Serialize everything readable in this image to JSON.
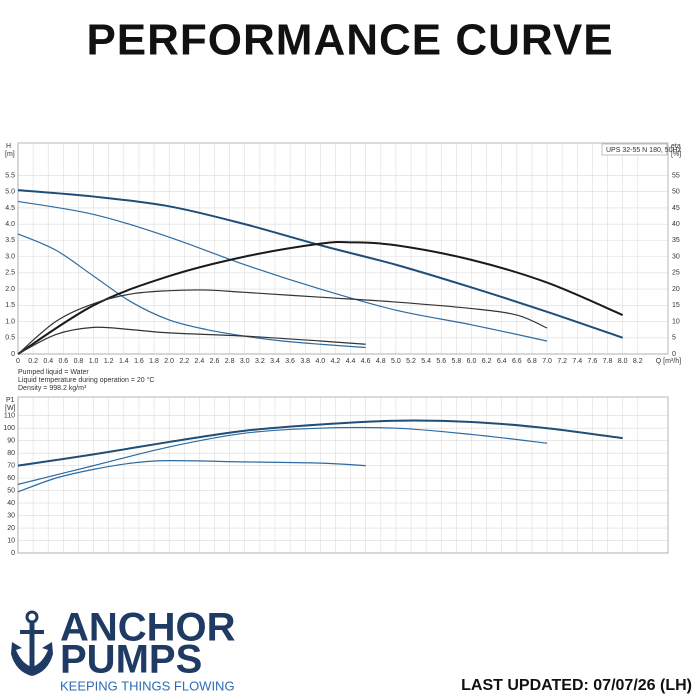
{
  "title": "PERFORMANCE CURVE",
  "footer": {
    "brand_top": "ANCHOR",
    "brand_bottom": "PUMPS",
    "slogan": "KEEPING THINGS FLOWING",
    "updated": "LAST UPDATED: 07/07/26 (LH)"
  },
  "chart_data": [
    {
      "type": "line",
      "ylabel": "H",
      "yunit": "[m]",
      "y2label": "eta",
      "y2unit": "[%]",
      "xlabel": "Q [m³/h]",
      "annotation": "UPS 32-55 N 180, 50Hz",
      "notes": [
        "Pumped liquid = Water",
        "Liquid temperature during operation = 20 °C",
        "Density = 998.2 kg/m³"
      ],
      "xlim": [
        0,
        8.6
      ],
      "ylim": [
        0,
        6.5
      ],
      "y2lim": [
        0,
        65
      ],
      "grid": true,
      "xticks": [
        0,
        0.2,
        0.4,
        0.6,
        0.8,
        {
          "value": 1,
          "label": "1.0"
        },
        1.2,
        1.4,
        1.6,
        1.8,
        {
          "value": 2,
          "label": "2.0"
        },
        2.2,
        2.4,
        2.6,
        2.8,
        {
          "value": 3,
          "label": "3.0"
        },
        3.2,
        3.4,
        3.6,
        3.8,
        {
          "value": 4,
          "label": "4.0"
        },
        4.2,
        4.4,
        4.6,
        4.8,
        {
          "value": 5,
          "label": "5.0"
        },
        5.2,
        5.4,
        5.6,
        5.8,
        {
          "value": 6,
          "label": "6.0"
        },
        6.2,
        6.4,
        6.6,
        6.8,
        {
          "value": 7,
          "label": "7.0"
        },
        7.2,
        7.4,
        7.6,
        7.8,
        {
          "value": 8,
          "label": "8.0"
        },
        8.2
      ],
      "yticks": [
        0,
        0.5,
        {
          "value": 1,
          "label": "1.0"
        },
        1.5,
        {
          "value": 2,
          "label": "2.0"
        },
        2.5,
        {
          "value": 3,
          "label": "3.0"
        },
        3.5,
        {
          "value": 4,
          "label": "4.0"
        },
        4.5,
        {
          "value": 5,
          "label": "5.0"
        },
        5.5
      ],
      "y2ticks": [
        0,
        5,
        10,
        15,
        20,
        25,
        30,
        35,
        40,
        45,
        50,
        55
      ],
      "series": [
        {
          "color": "#1f4e79",
          "width": 2,
          "x": [
            0,
            1,
            2,
            3,
            4,
            5,
            6,
            7,
            8
          ],
          "values": [
            5.05,
            4.85,
            4.55,
            4.0,
            3.35,
            2.75,
            2.05,
            1.3,
            0.5
          ]
        },
        {
          "color": "#2f6aa0",
          "width": 1.2,
          "x": [
            0,
            1,
            2,
            3,
            4,
            5,
            6,
            7
          ],
          "values": [
            4.7,
            4.3,
            3.6,
            2.75,
            2.0,
            1.35,
            0.9,
            0.4
          ]
        },
        {
          "color": "#2f6aa0",
          "width": 1.2,
          "x": [
            0,
            0.5,
            1,
            1.5,
            2,
            2.5,
            3,
            3.5,
            4,
            4.6
          ],
          "values": [
            3.7,
            3.2,
            2.4,
            1.6,
            1.05,
            0.75,
            0.55,
            0.4,
            0.3,
            0.2
          ]
        },
        {
          "color": "#1a1a1a",
          "width": 2,
          "axis": "y2",
          "x": [
            0,
            1,
            2,
            3,
            4,
            4.4,
            5,
            6,
            7,
            8
          ],
          "values": [
            0,
            15,
            24,
            30,
            34,
            34.4,
            33.5,
            29,
            22,
            12
          ]
        },
        {
          "color": "#333333",
          "width": 1.2,
          "axis": "y2",
          "x": [
            0,
            0.5,
            1,
            1.5,
            2,
            2.5,
            3,
            4,
            5,
            6,
            6.6,
            7
          ],
          "values": [
            0,
            10,
            15.5,
            18.5,
            19.5,
            19.7,
            19,
            17.5,
            16,
            14,
            12,
            8
          ]
        },
        {
          "color": "#333333",
          "width": 1.2,
          "axis": "y2",
          "x": [
            0,
            0.5,
            1,
            1.5,
            2,
            3,
            4,
            4.6
          ],
          "values": [
            0,
            6,
            8.2,
            7.5,
            6.5,
            5.5,
            4,
            3
          ]
        }
      ]
    },
    {
      "type": "line",
      "ylabel": "P1",
      "yunit": "[W]",
      "xlim": [
        0,
        8.6
      ],
      "ylim": [
        0,
        125
      ],
      "grid": true,
      "yticks": [
        0,
        10,
        20,
        30,
        40,
        50,
        60,
        70,
        80,
        90,
        100,
        110
      ],
      "series": [
        {
          "color": "#1f4e79",
          "width": 2,
          "x": [
            0,
            1,
            2,
            3,
            4,
            5,
            6,
            7,
            8
          ],
          "values": [
            70,
            79,
            89,
            98,
            103,
            106,
            105,
            100,
            92
          ]
        },
        {
          "color": "#2f6aa0",
          "width": 1.2,
          "x": [
            0,
            1,
            2,
            3,
            4,
            5,
            6,
            7
          ],
          "values": [
            55,
            70,
            85,
            96,
            100,
            100,
            95,
            88
          ]
        },
        {
          "color": "#2f6aa0",
          "width": 1.2,
          "x": [
            0,
            0.5,
            1,
            1.5,
            2,
            3,
            4,
            4.6
          ],
          "values": [
            49,
            60,
            67,
            72,
            74,
            73,
            72,
            70
          ]
        }
      ]
    }
  ]
}
